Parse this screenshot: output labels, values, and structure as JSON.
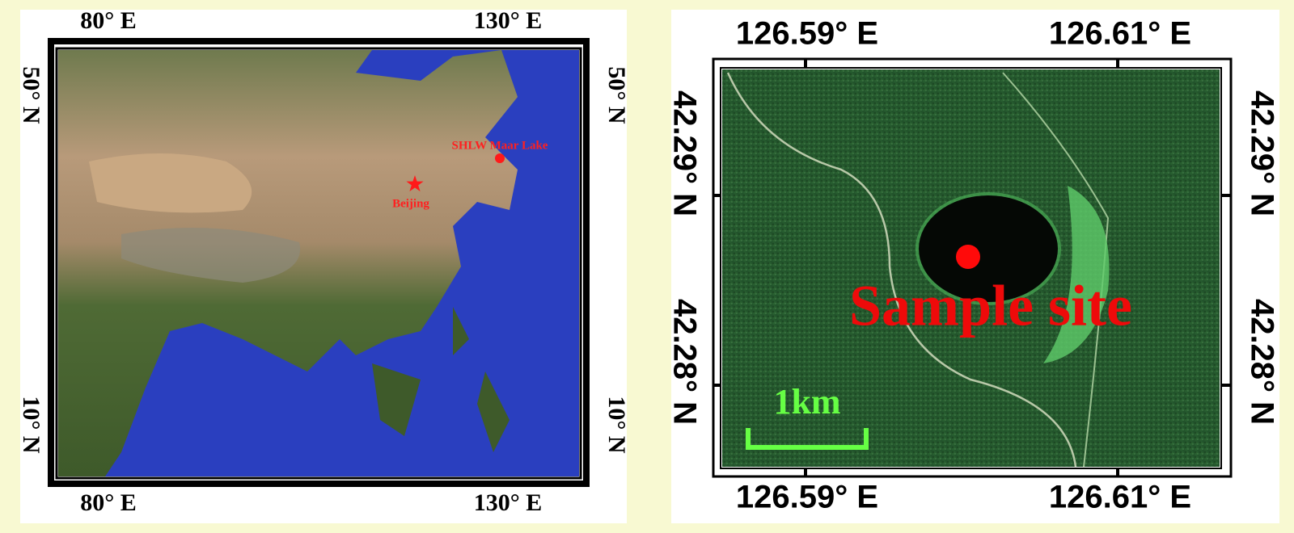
{
  "left_map": {
    "top_labels": [
      "80° E",
      "130° E"
    ],
    "bottom_labels": [
      "80° E",
      "130° E"
    ],
    "left_labels": [
      "50° N",
      "10° N"
    ],
    "right_labels": [
      "50° N",
      "10° N"
    ],
    "lake_label": "SHLW Maar Lake",
    "city_label": "Beijing"
  },
  "right_map": {
    "top_labels": [
      "126.59° E",
      "126.61° E"
    ],
    "bottom_labels": [
      "126.59° E",
      "126.61° E"
    ],
    "left_labels": [
      "42.29° N",
      "42.28° N"
    ],
    "right_labels": [
      "42.29° N",
      "42.28° N"
    ],
    "sample_label": "Sample site",
    "scale_label": "1km"
  }
}
